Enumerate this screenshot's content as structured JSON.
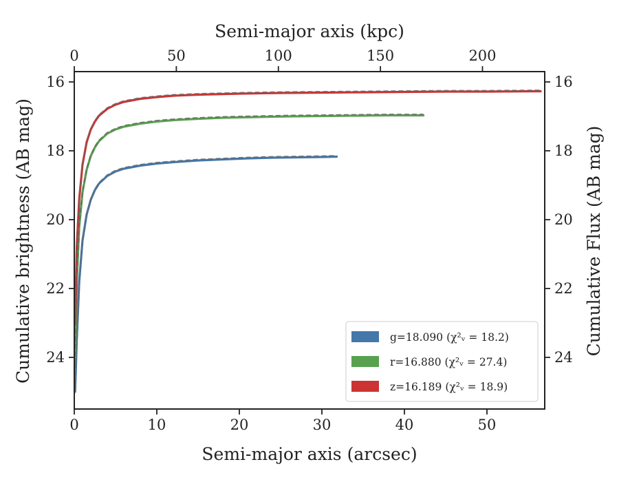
{
  "chart_data": {
    "type": "line",
    "xlabel": "Semi-major axis (arcsec)",
    "ylabel": "Cumulative brightness (AB mag)",
    "x2label": "Semi-major axis (kpc)",
    "y2label": "Cumulative Flux (AB mag)",
    "xlim": [
      0,
      57
    ],
    "ylim": [
      25.5,
      15.7
    ],
    "x2lim": [
      0,
      230.5
    ],
    "y_inverted": true,
    "xticks": [
      "0",
      "10",
      "20",
      "30",
      "40",
      "50"
    ],
    "yticks": [
      "16",
      "18",
      "20",
      "22",
      "24"
    ],
    "x2ticks": [
      "0",
      "50",
      "100",
      "150",
      "200"
    ],
    "y2ticks": [
      "16",
      "18",
      "20",
      "22",
      "24"
    ],
    "grid": false,
    "legend_position": "lower-right",
    "model_line_style": "dashed",
    "series": [
      {
        "name": "g",
        "label": "g=18.090 (χ²ᵥ = 18.2)",
        "color": "#4477aa",
        "x": [
          0.1,
          0.3,
          0.6,
          1,
          1.5,
          2,
          2.5,
          3,
          4,
          5,
          6,
          8,
          10,
          12,
          15,
          18,
          21,
          24,
          27,
          30,
          31.8
        ],
        "y": [
          25.0,
          23.5,
          21.8,
          20.6,
          19.85,
          19.42,
          19.14,
          18.95,
          18.73,
          18.6,
          18.52,
          18.43,
          18.37,
          18.33,
          18.28,
          18.25,
          18.22,
          18.2,
          18.19,
          18.18,
          18.17
        ]
      },
      {
        "name": "r",
        "label": "r=16.880 (χ²ᵥ = 27.4)",
        "color": "#59a14f",
        "x": [
          0.1,
          0.3,
          0.6,
          1,
          1.5,
          2,
          2.5,
          3,
          4,
          5,
          6,
          8,
          10,
          12,
          15,
          18,
          22,
          26,
          30,
          34,
          38,
          42.3
        ],
        "y": [
          24.0,
          21.8,
          20.2,
          19.2,
          18.55,
          18.15,
          17.9,
          17.72,
          17.5,
          17.38,
          17.3,
          17.21,
          17.15,
          17.11,
          17.07,
          17.04,
          17.02,
          17.0,
          16.99,
          16.98,
          16.97,
          16.97
        ]
      },
      {
        "name": "z",
        "label": "z=16.189 (χ²ᵥ = 18.9)",
        "color": "#cc3333",
        "x": [
          0.1,
          0.3,
          0.6,
          1,
          1.5,
          2,
          2.5,
          3,
          4,
          5,
          6,
          8,
          10,
          12,
          15,
          20,
          25,
          30,
          35,
          40,
          45,
          50,
          56.5
        ],
        "y": [
          23.0,
          20.8,
          19.4,
          18.4,
          17.75,
          17.38,
          17.15,
          16.98,
          16.78,
          16.66,
          16.58,
          16.49,
          16.44,
          16.4,
          16.37,
          16.34,
          16.32,
          16.31,
          16.3,
          16.29,
          16.28,
          16.28,
          16.27
        ]
      }
    ]
  }
}
